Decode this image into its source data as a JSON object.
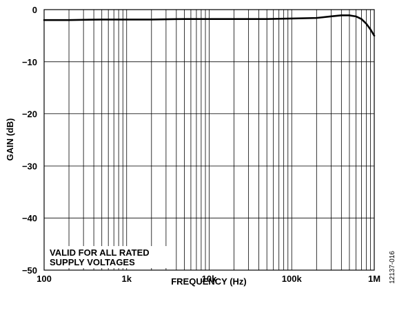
{
  "chart_data": {
    "type": "line",
    "xlabel": "FREQUENCY (Hz)",
    "ylabel": "GAIN (dB)",
    "x_scale": "log",
    "xlim": [
      100,
      1000000
    ],
    "ylim": [
      -50,
      0
    ],
    "grid": true,
    "x_tick_labels": [
      {
        "value": 100,
        "label": "100"
      },
      {
        "value": 1000,
        "label": "1k"
      },
      {
        "value": 10000,
        "label": "10k"
      },
      {
        "value": 100000,
        "label": "100k"
      },
      {
        "value": 1000000,
        "label": "1M"
      }
    ],
    "y_tick_labels": [
      {
        "value": 0,
        "label": "0"
      },
      {
        "value": -10,
        "label": "−10"
      },
      {
        "value": -20,
        "label": "−20"
      },
      {
        "value": -30,
        "label": "−30"
      },
      {
        "value": -40,
        "label": "−40"
      },
      {
        "value": -50,
        "label": "−50"
      }
    ],
    "annotation": [
      "VALID FOR ALL RATED",
      "SUPPLY VOLTAGES"
    ],
    "series": [
      {
        "color": "#000000",
        "x": [
          100,
          200,
          500,
          1000,
          2000,
          5000,
          10000,
          20000,
          50000,
          100000,
          200000,
          300000,
          400000,
          500000,
          600000,
          700000,
          800000,
          900000,
          1000000
        ],
        "y": [
          -2.0,
          -2.0,
          -1.9,
          -1.9,
          -1.9,
          -1.8,
          -1.8,
          -1.8,
          -1.8,
          -1.7,
          -1.6,
          -1.3,
          -1.1,
          -1.1,
          -1.3,
          -1.8,
          -2.7,
          -3.8,
          -5.0
        ]
      }
    ]
  },
  "figure_id": "12137-016"
}
